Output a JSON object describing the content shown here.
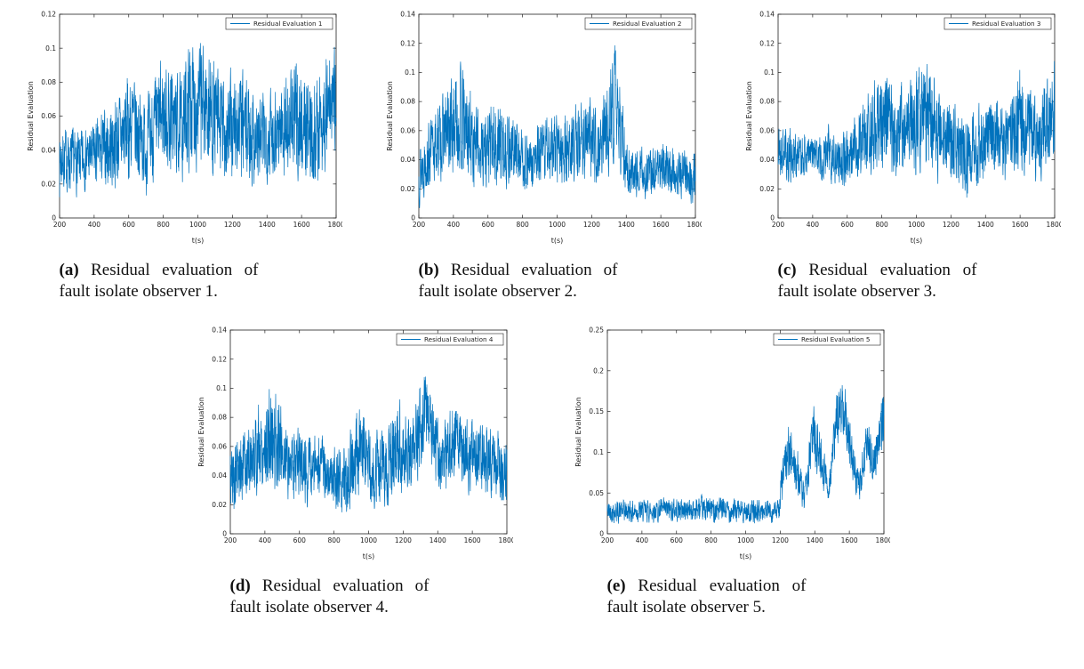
{
  "page": {
    "background": "#ffffff"
  },
  "colors": {
    "line": "#0072BD",
    "axis": "#222222",
    "text": "#111111"
  },
  "chart_data": [
    {
      "type": "line",
      "legend": "Residual Evaluation 1",
      "legend_position": "top-right",
      "xlabel": "t(s)",
      "ylabel": "Residual Evaluation",
      "xlim": [
        200,
        1800
      ],
      "ylim": [
        0,
        0.12
      ],
      "xticks": [
        200,
        400,
        600,
        800,
        1000,
        1200,
        1400,
        1600,
        1800
      ],
      "yticks": [
        0,
        0.02,
        0.04,
        0.06,
        0.08,
        0.1,
        0.12
      ],
      "grid": false,
      "line_color": "#0072BD",
      "seed": 7,
      "envelope_points": [
        [
          200,
          0.01,
          0.06
        ],
        [
          300,
          0.01,
          0.055
        ],
        [
          400,
          0.015,
          0.06
        ],
        [
          500,
          0.01,
          0.075
        ],
        [
          620,
          0.015,
          0.095
        ],
        [
          700,
          0.01,
          0.075
        ],
        [
          800,
          0.02,
          0.103
        ],
        [
          900,
          0.015,
          0.09
        ],
        [
          960,
          0.02,
          0.117
        ],
        [
          1050,
          0.02,
          0.112
        ],
        [
          1150,
          0.01,
          0.09
        ],
        [
          1250,
          0.015,
          0.095
        ],
        [
          1350,
          0.01,
          0.08
        ],
        [
          1450,
          0.02,
          0.085
        ],
        [
          1570,
          0.015,
          0.1
        ],
        [
          1680,
          0.01,
          0.09
        ],
        [
          1800,
          0.03,
          0.115
        ]
      ],
      "notable_peaks": [
        {
          "t": 960,
          "v": 0.117
        },
        {
          "t": 1050,
          "v": 0.11
        }
      ],
      "caption_label": "(a)",
      "caption_text": "Residual evaluation of fault isolate observer 1."
    },
    {
      "type": "line",
      "legend": "Residual Evaluation 2",
      "legend_position": "top-right",
      "xlabel": "t(s)",
      "ylabel": "Residual Evaluation",
      "xlim": [
        200,
        1800
      ],
      "ylim": [
        0,
        0.14
      ],
      "xticks": [
        200,
        400,
        600,
        800,
        1000,
        1200,
        1400,
        1600,
        1800
      ],
      "yticks": [
        0,
        0.02,
        0.04,
        0.06,
        0.08,
        0.1,
        0.12,
        0.14
      ],
      "grid": false,
      "line_color": "#0072BD",
      "seed": 13,
      "envelope_points": [
        [
          200,
          0.005,
          0.06
        ],
        [
          300,
          0.02,
          0.08
        ],
        [
          430,
          0.02,
          0.116
        ],
        [
          550,
          0.015,
          0.08
        ],
        [
          650,
          0.01,
          0.09
        ],
        [
          750,
          0.02,
          0.075
        ],
        [
          850,
          0.01,
          0.06
        ],
        [
          950,
          0.02,
          0.08
        ],
        [
          1050,
          0.015,
          0.075
        ],
        [
          1150,
          0.02,
          0.09
        ],
        [
          1250,
          0.02,
          0.08
        ],
        [
          1340,
          0.03,
          0.131
        ],
        [
          1400,
          0.01,
          0.06
        ],
        [
          1500,
          0.01,
          0.05
        ],
        [
          1600,
          0.015,
          0.055
        ],
        [
          1700,
          0.01,
          0.05
        ],
        [
          1800,
          0.005,
          0.05
        ]
      ],
      "notable_peaks": [
        {
          "t": 430,
          "v": 0.116
        },
        {
          "t": 1340,
          "v": 0.131
        }
      ],
      "caption_label": "(b)",
      "caption_text": "Residual evaluation of fault isolate observer 2."
    },
    {
      "type": "line",
      "legend": "Residual Evaluation 3",
      "legend_position": "top-right",
      "xlabel": "t(s)",
      "ylabel": "Residual Evaluation",
      "xlim": [
        200,
        1800
      ],
      "ylim": [
        0,
        0.14
      ],
      "xticks": [
        200,
        400,
        600,
        800,
        1000,
        1200,
        1400,
        1600,
        1800
      ],
      "yticks": [
        0,
        0.02,
        0.04,
        0.06,
        0.08,
        0.1,
        0.12,
        0.14
      ],
      "grid": false,
      "line_color": "#0072BD",
      "seed": 21,
      "envelope_points": [
        [
          200,
          0.02,
          0.07
        ],
        [
          300,
          0.02,
          0.065
        ],
        [
          400,
          0.025,
          0.06
        ],
        [
          500,
          0.02,
          0.07
        ],
        [
          600,
          0.015,
          0.065
        ],
        [
          700,
          0.02,
          0.09
        ],
        [
          800,
          0.02,
          0.115
        ],
        [
          900,
          0.02,
          0.1
        ],
        [
          1000,
          0.025,
          0.105
        ],
        [
          1060,
          0.02,
          0.12
        ],
        [
          1150,
          0.02,
          0.09
        ],
        [
          1250,
          0.01,
          0.08
        ],
        [
          1300,
          0.005,
          0.075
        ],
        [
          1400,
          0.02,
          0.09
        ],
        [
          1500,
          0.02,
          0.085
        ],
        [
          1600,
          0.02,
          0.11
        ],
        [
          1700,
          0.02,
          0.09
        ],
        [
          1800,
          0.03,
          0.12
        ]
      ],
      "notable_peaks": [
        {
          "t": 800,
          "v": 0.115
        },
        {
          "t": 1060,
          "v": 0.12
        },
        {
          "t": 1800,
          "v": 0.12
        }
      ],
      "caption_label": "(c)",
      "caption_text": "Residual evaluation of fault isolate observer 3."
    },
    {
      "type": "line",
      "legend": "Residual Evaluation 4",
      "legend_position": "top-right",
      "xlabel": "t(s)",
      "ylabel": "Residual Evaluation",
      "xlim": [
        200,
        1800
      ],
      "ylim": [
        0,
        0.14
      ],
      "xticks": [
        200,
        400,
        600,
        800,
        1000,
        1200,
        1400,
        1600,
        1800
      ],
      "yticks": [
        0,
        0.02,
        0.04,
        0.06,
        0.08,
        0.1,
        0.12,
        0.14
      ],
      "grid": false,
      "line_color": "#0072BD",
      "seed": 5,
      "envelope_points": [
        [
          200,
          0.005,
          0.07
        ],
        [
          300,
          0.02,
          0.08
        ],
        [
          430,
          0.02,
          0.113
        ],
        [
          550,
          0.02,
          0.08
        ],
        [
          650,
          0.015,
          0.075
        ],
        [
          750,
          0.02,
          0.07
        ],
        [
          850,
          0.005,
          0.065
        ],
        [
          950,
          0.02,
          0.095
        ],
        [
          1050,
          0.01,
          0.075
        ],
        [
          1150,
          0.02,
          0.1
        ],
        [
          1250,
          0.02,
          0.09
        ],
        [
          1330,
          0.04,
          0.123
        ],
        [
          1420,
          0.02,
          0.08
        ],
        [
          1500,
          0.03,
          0.095
        ],
        [
          1600,
          0.02,
          0.085
        ],
        [
          1700,
          0.02,
          0.08
        ],
        [
          1800,
          0.01,
          0.075
        ]
      ],
      "notable_peaks": [
        {
          "t": 430,
          "v": 0.113
        },
        {
          "t": 1330,
          "v": 0.123
        }
      ],
      "caption_label": "(d)",
      "caption_text": "Residual evaluation of fault isolate observer 4."
    },
    {
      "type": "line",
      "legend": "Residual Evaluation 5",
      "legend_position": "top-right",
      "xlabel": "t(s)",
      "ylabel": "Residual Evaluation",
      "xlim": [
        200,
        1800
      ],
      "ylim": [
        0,
        0.25
      ],
      "xticks": [
        200,
        400,
        600,
        800,
        1000,
        1200,
        1400,
        1600,
        1800
      ],
      "yticks": [
        0,
        0.05,
        0.1,
        0.15,
        0.2,
        0.25
      ],
      "grid": false,
      "line_color": "#0072BD",
      "seed": 42,
      "envelope_points": [
        [
          200,
          0.01,
          0.045
        ],
        [
          400,
          0.01,
          0.045
        ],
        [
          600,
          0.012,
          0.048
        ],
        [
          800,
          0.01,
          0.05
        ],
        [
          1000,
          0.01,
          0.045
        ],
        [
          1190,
          0.01,
          0.045
        ],
        [
          1210,
          0.03,
          0.1
        ],
        [
          1250,
          0.06,
          0.142
        ],
        [
          1300,
          0.04,
          0.11
        ],
        [
          1340,
          0.02,
          0.06
        ],
        [
          1390,
          0.08,
          0.17
        ],
        [
          1440,
          0.05,
          0.13
        ],
        [
          1480,
          0.03,
          0.08
        ],
        [
          1530,
          0.1,
          0.19
        ],
        [
          1570,
          0.12,
          0.2
        ],
        [
          1620,
          0.05,
          0.12
        ],
        [
          1660,
          0.03,
          0.08
        ],
        [
          1700,
          0.08,
          0.15
        ],
        [
          1740,
          0.05,
          0.12
        ],
        [
          1770,
          0.08,
          0.16
        ],
        [
          1800,
          0.1,
          0.19
        ]
      ],
      "notable_peaks": [
        {
          "t": 1570,
          "v": 0.2
        },
        {
          "t": 1800,
          "v": 0.19
        }
      ],
      "fault_onset_t": 1200,
      "caption_label": "(e)",
      "caption_text": "Residual evaluation of fault isolate observer 5."
    }
  ]
}
